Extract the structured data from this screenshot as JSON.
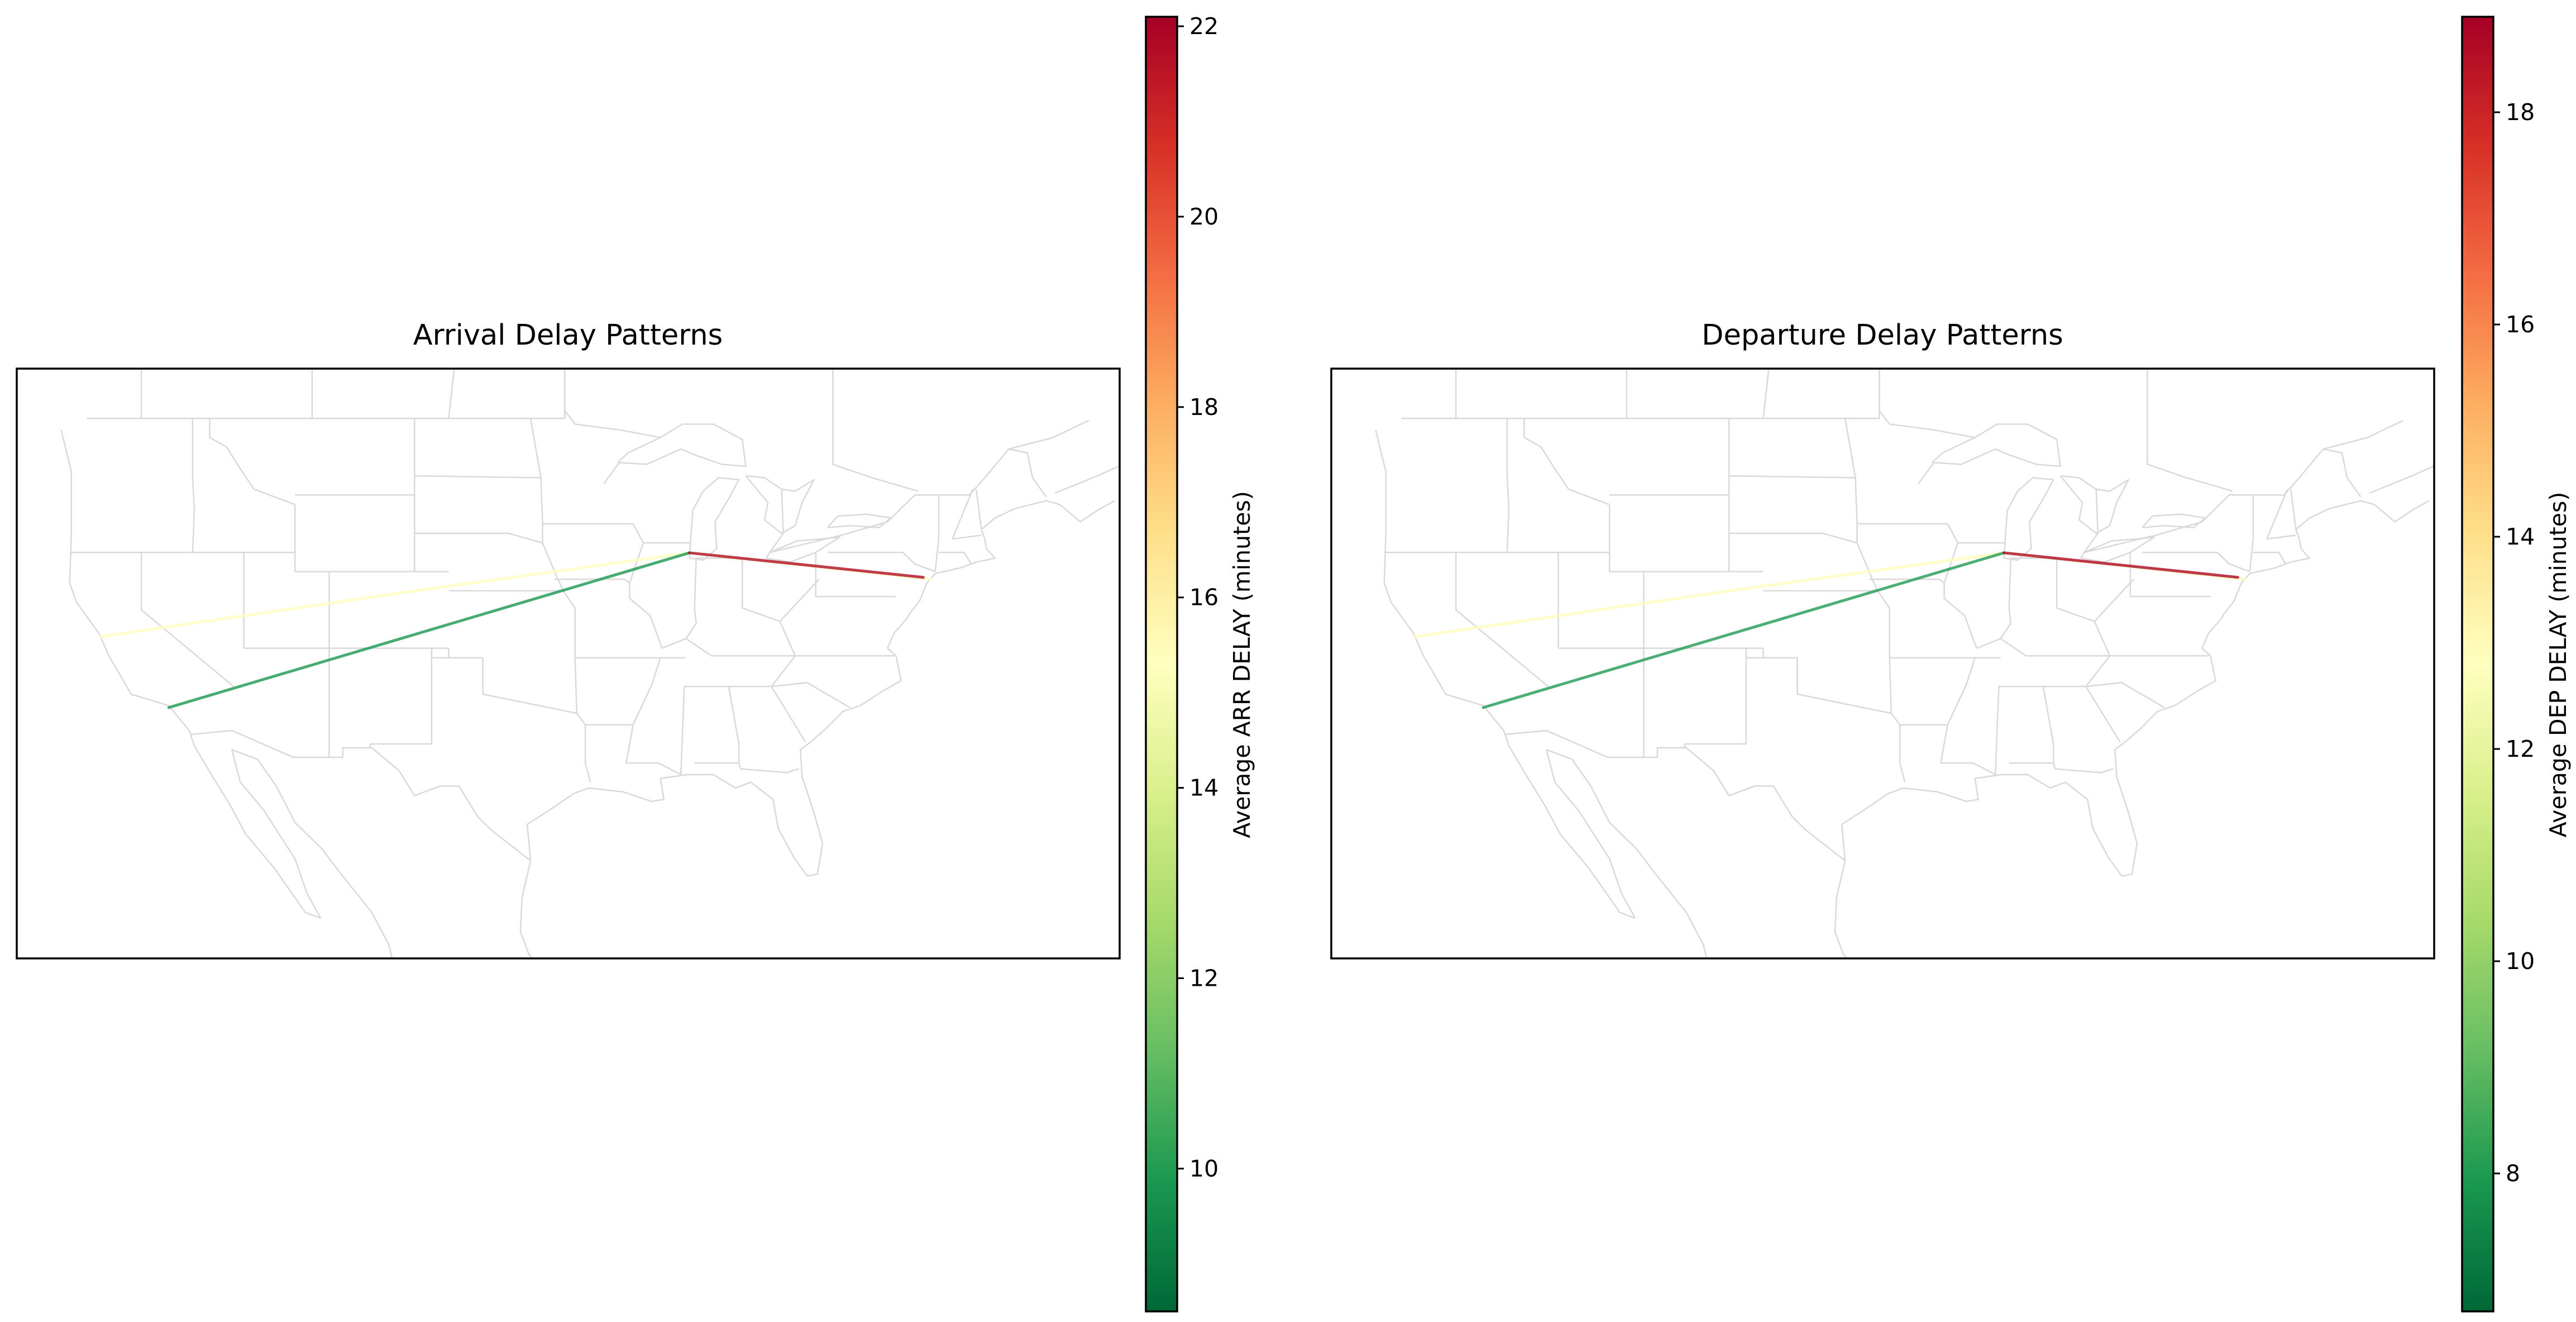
{
  "colormap": {
    "name": "RdYlGn_r",
    "stops": [
      "#006837",
      "#1a9850",
      "#66bd63",
      "#a6d96a",
      "#d9ef8b",
      "#ffffbf",
      "#fee08b",
      "#fdae61",
      "#f46d43",
      "#d73027",
      "#a50026"
    ]
  },
  "panels": [
    {
      "id": "arrival",
      "title": "Arrival Delay Patterns",
      "colorbar": {
        "label": "Average ARR DELAY (minutes)",
        "min": 8.5,
        "max": 22.1,
        "ticks": [
          10,
          12,
          14,
          16,
          18,
          20,
          22
        ]
      },
      "routes": [
        {
          "points": [
            [
              -122.4,
              37.6
            ],
            [
              -104.7,
              39.9
            ],
            [
              -87.9,
              41.98
            ],
            [
              -73.8,
              40.6
            ]
          ],
          "delay": 15.3
        },
        {
          "points": [
            [
              -118.4,
              33.9
            ],
            [
              -87.9,
              41.98
            ]
          ],
          "delay": 9.8
        },
        {
          "points": [
            [
              -87.9,
              41.98
            ],
            [
              -74.2,
              40.7
            ]
          ],
          "delay": 21.8
        }
      ]
    },
    {
      "id": "departure",
      "title": "Departure Delay Patterns",
      "colorbar": {
        "label": "Average DEP DELAY (minutes)",
        "min": 6.7,
        "max": 18.9,
        "ticks": [
          8,
          10,
          12,
          14,
          16,
          18
        ]
      },
      "routes": [
        {
          "points": [
            [
              -122.4,
              37.6
            ],
            [
              -104.7,
              39.9
            ],
            [
              -87.9,
              41.98
            ],
            [
              -73.8,
              40.6
            ]
          ],
          "delay": 12.9
        },
        {
          "points": [
            [
              -118.4,
              33.9
            ],
            [
              -87.9,
              41.98
            ]
          ],
          "delay": 8.0
        },
        {
          "points": [
            [
              -87.9,
              41.98
            ],
            [
              -74.2,
              40.7
            ]
          ],
          "delay": 18.7
        }
      ]
    }
  ]
}
